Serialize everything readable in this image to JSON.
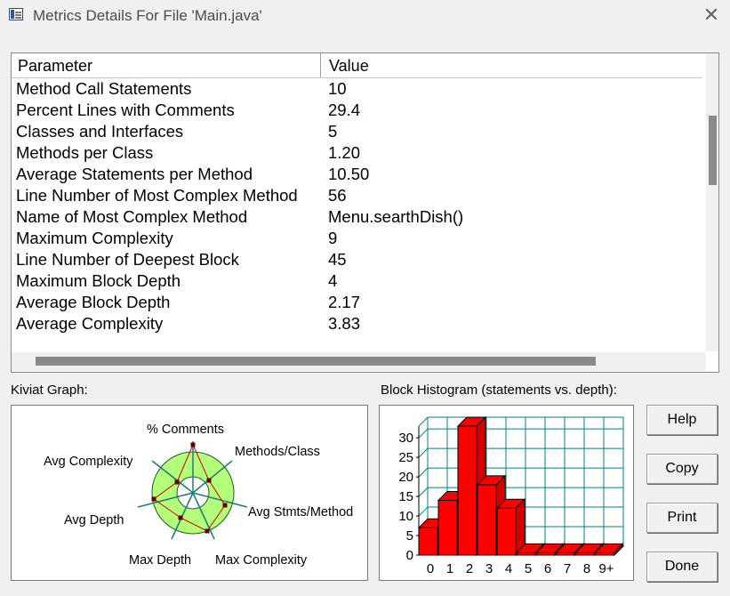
{
  "window": {
    "title": "Metrics Details For File 'Main.java'"
  },
  "table": {
    "headers": {
      "parameter": "Parameter",
      "value": "Value"
    },
    "rows": [
      {
        "parameter": "Method Call Statements",
        "value": "10"
      },
      {
        "parameter": "Percent Lines with Comments",
        "value": "29.4"
      },
      {
        "parameter": "Classes and Interfaces",
        "value": "5"
      },
      {
        "parameter": "Methods per Class",
        "value": "1.20"
      },
      {
        "parameter": "Average Statements per Method",
        "value": "10.50"
      },
      {
        "parameter": "Line Number of Most Complex Method",
        "value": "56"
      },
      {
        "parameter": "Name of Most Complex Method",
        "value": "Menu.searthDish()"
      },
      {
        "parameter": "Maximum Complexity",
        "value": "9"
      },
      {
        "parameter": "Line Number of Deepest Block",
        "value": "45"
      },
      {
        "parameter": "Maximum Block Depth",
        "value": "4"
      },
      {
        "parameter": "Average Block Depth",
        "value": "2.17"
      },
      {
        "parameter": "Average Complexity",
        "value": "3.83"
      }
    ]
  },
  "kiviat": {
    "label": "Kiviat Graph:",
    "axes": {
      "comments": "% Comments",
      "methods_class": "Methods/Class",
      "avg_stmts": "Avg Stmts/Method",
      "max_complexity": "Max Complexity",
      "max_depth": "Max Depth",
      "avg_depth": "Avg Depth",
      "avg_complexity": "Avg Complexity"
    }
  },
  "histogram": {
    "label": "Block Histogram (statements vs. depth):",
    "chart_data": {
      "type": "bar",
      "categories": [
        "0",
        "1",
        "2",
        "3",
        "4",
        "5",
        "6",
        "7",
        "8",
        "9+"
      ],
      "values": [
        7,
        14,
        33,
        18,
        12,
        0,
        0,
        0,
        0,
        0
      ],
      "yticks": [
        "0",
        "5",
        "10",
        "15",
        "20",
        "25",
        "30"
      ],
      "ylim": [
        0,
        33
      ],
      "bar_color": "#ff0000",
      "grid_color": "#008080",
      "grid": true
    }
  },
  "buttons": {
    "help": "Help",
    "copy": "Copy",
    "print": "Print",
    "done": "Done"
  }
}
